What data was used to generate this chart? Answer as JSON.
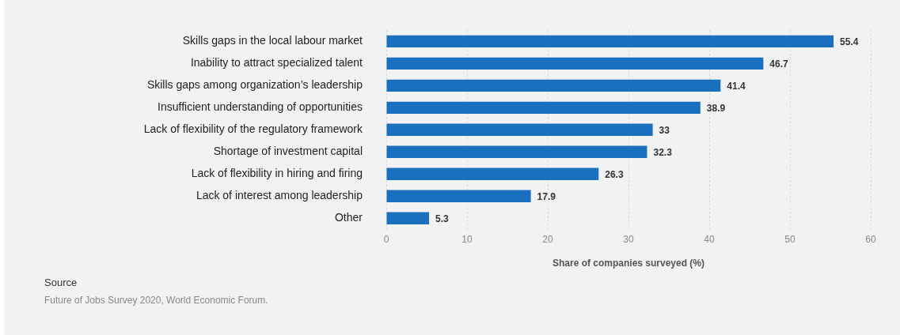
{
  "chart_data": {
    "type": "bar",
    "orientation": "horizontal",
    "categories": [
      "Skills gaps in the local labour market",
      "Inability to attract specialized talent",
      "Skills gaps among organization’s leadership",
      "Insufficient understanding of opportunities",
      "Lack of flexibility of the regulatory framework",
      "Shortage of investment capital",
      "Lack of flexibility in hiring and firing",
      "Lack of interest among leadership",
      "Other"
    ],
    "values": [
      55.4,
      46.7,
      41.4,
      38.9,
      33,
      32.3,
      26.3,
      17.9,
      5.3
    ],
    "color": "#1a6fbe",
    "xlabel": "Share of companies surveyed (%)",
    "xlim": [
      0,
      60
    ],
    "xticks": [
      0,
      10,
      20,
      30,
      40,
      50,
      60
    ],
    "grid": "x",
    "data_labels": true,
    "annotations": [
      "Source",
      "Future of Jobs Survey 2020, World Economic Forum."
    ]
  }
}
